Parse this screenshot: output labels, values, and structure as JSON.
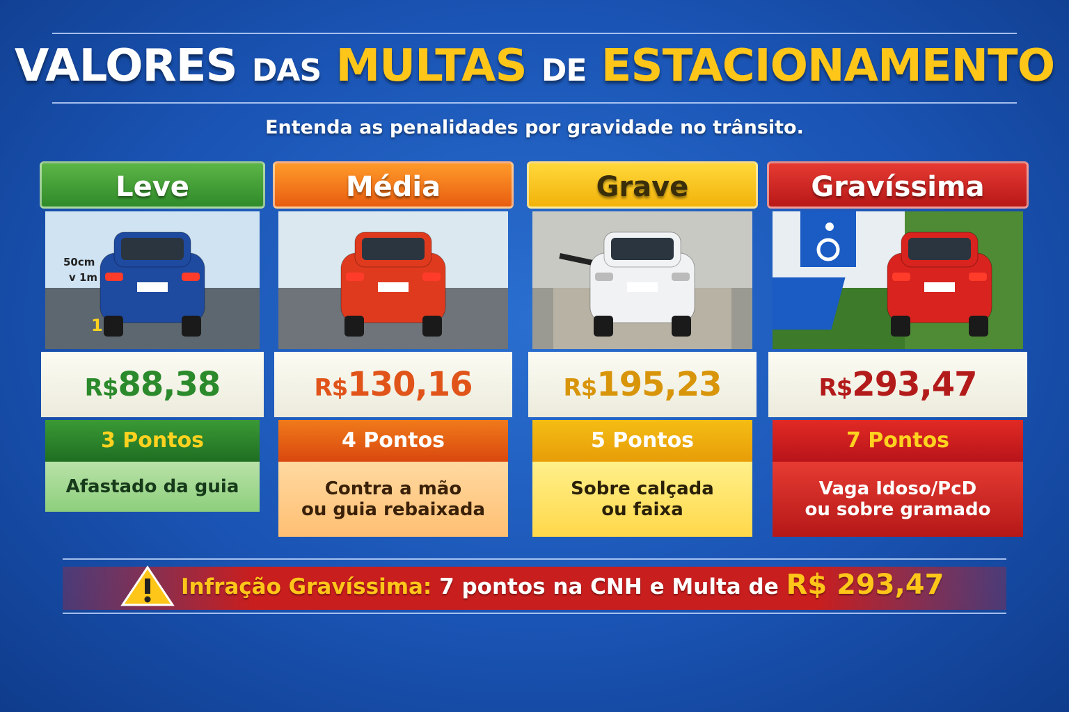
{
  "header": {
    "title": [
      "VALORES",
      "DAS",
      "MULTAS",
      "DE",
      "ESTACIONAMENTO"
    ],
    "subtitle": "Entenda as penalidades por gravidade no trânsito."
  },
  "cards": [
    {
      "level": "Leve",
      "currency": "R$",
      "amount": "88,38",
      "points": "3 Pontos",
      "description": [
        "Afastado da guia"
      ],
      "image_labels": [
        "50cm",
        "v 1m",
        "1"
      ]
    },
    {
      "level": "Média",
      "currency": "R$",
      "amount": "130,16",
      "points": "4 Pontos",
      "description": [
        "Contra a mão",
        "ou guia rebaixada"
      ]
    },
    {
      "level": "Grave",
      "currency": "R$",
      "amount": "195,23",
      "points": "5 Pontos",
      "description": [
        "Sobre calçada",
        "ou faixa"
      ]
    },
    {
      "level": "Gravíssima",
      "currency": "R$",
      "amount": "293,47",
      "points": "7 Pontos",
      "description": [
        "Vaga Idoso/PcD",
        "ou sobre gramado"
      ]
    }
  ],
  "banner": {
    "label": "Infração Gravíssima:",
    "text": "7 pontos na CNH e Multa de",
    "amount": "R$ 293,47"
  }
}
